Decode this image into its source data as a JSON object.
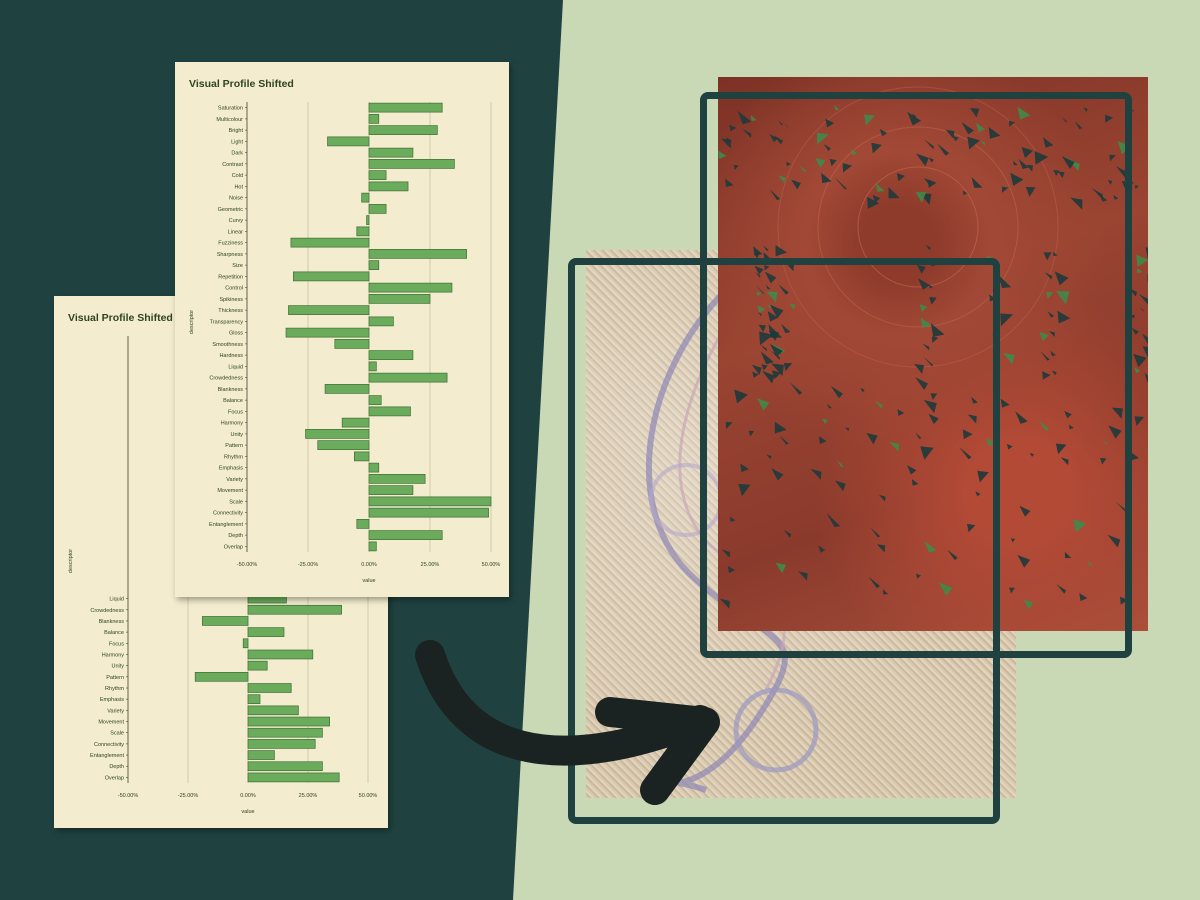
{
  "colors": {
    "background_dark": "#1f4240",
    "background_light": "#c9d9b6",
    "panel": "#f3ecce",
    "bar_fill": "#6aab5c",
    "bar_stroke": "#3f6e34",
    "text": "#2e4424",
    "arrow": "#1a2322",
    "frame": "#1f4240"
  },
  "icons": {
    "arrow": "curved-arrow-icon"
  },
  "chart_data": [
    {
      "type": "bar",
      "orientation": "horizontal",
      "title": "Visual Profile Shifted",
      "xlabel": "value",
      "ylabel": "descriptor",
      "xlim": [
        -0.5,
        0.5
      ],
      "ticks": [
        "-50.00%",
        "-25.00%",
        "0.00%",
        "25.00%",
        "50.00%"
      ],
      "tick_values": [
        -0.5,
        -0.25,
        0,
        0.25,
        0.5
      ],
      "grid": true,
      "visible_from_index": 23,
      "categories": [
        "Saturation",
        "Multicolour",
        "Bright",
        "Light",
        "Dark",
        "Contrast",
        "Cold",
        "Hot",
        "Noise",
        "Geometric",
        "Curvy",
        "Linear",
        "Fuzziness",
        "Sharpness",
        "Size",
        "Repetition",
        "Control",
        "Spikiness",
        "Thickness",
        "Transparency",
        "Gloss",
        "Smoothness",
        "Hardness",
        "Liquid",
        "Crowdedness",
        "Blankness",
        "Balance",
        "Focus",
        "Harmony",
        "Unity",
        "Pattern",
        "Rhythm",
        "Emphasis",
        "Variety",
        "Movement",
        "Scale",
        "Connectivity",
        "Entanglement",
        "Depth",
        "Overlap"
      ],
      "values": [
        null,
        null,
        null,
        null,
        null,
        null,
        null,
        null,
        null,
        null,
        null,
        null,
        null,
        null,
        null,
        null,
        null,
        null,
        null,
        null,
        null,
        null,
        null,
        0.16,
        0.39,
        -0.19,
        0.15,
        -0.02,
        0.27,
        0.08,
        -0.22,
        0.18,
        0.05,
        0.21,
        0.34,
        0.31,
        0.28,
        0.11,
        0.31,
        0.38
      ]
    },
    {
      "type": "bar",
      "orientation": "horizontal",
      "title": "Visual Profile Shifted",
      "xlabel": "value",
      "ylabel": "descriptor",
      "xlim": [
        -0.5,
        0.5
      ],
      "ticks": [
        "-50.00%",
        "-25.00%",
        "0.00%",
        "25.00%",
        "50.00%"
      ],
      "tick_values": [
        -0.5,
        -0.25,
        0,
        0.25,
        0.5
      ],
      "grid": true,
      "visible_from_index": 0,
      "categories": [
        "Saturation",
        "Multicolour",
        "Bright",
        "Light",
        "Dark",
        "Contrast",
        "Cold",
        "Hot",
        "Noise",
        "Geometric",
        "Curvy",
        "Linear",
        "Fuzziness",
        "Sharpness",
        "Size",
        "Repetition",
        "Control",
        "Spikiness",
        "Thickness",
        "Transparency",
        "Gloss",
        "Smoothness",
        "Hardness",
        "Liquid",
        "Crowdedness",
        "Blankness",
        "Balance",
        "Focus",
        "Harmony",
        "Unity",
        "Pattern",
        "Rhythm",
        "Emphasis",
        "Variety",
        "Movement",
        "Scale",
        "Connectivity",
        "Entanglement",
        "Depth",
        "Overlap"
      ],
      "values": [
        0.3,
        0.04,
        0.28,
        -0.17,
        0.18,
        0.35,
        0.07,
        0.16,
        -0.03,
        0.07,
        -0.01,
        -0.05,
        -0.32,
        0.4,
        0.04,
        -0.31,
        0.34,
        0.25,
        -0.33,
        0.1,
        -0.34,
        -0.14,
        0.18,
        0.03,
        0.32,
        -0.18,
        0.05,
        0.17,
        -0.11,
        -0.26,
        -0.21,
        -0.06,
        0.04,
        0.23,
        0.18,
        0.5,
        0.49,
        -0.05,
        0.3,
        0.03
      ]
    }
  ]
}
